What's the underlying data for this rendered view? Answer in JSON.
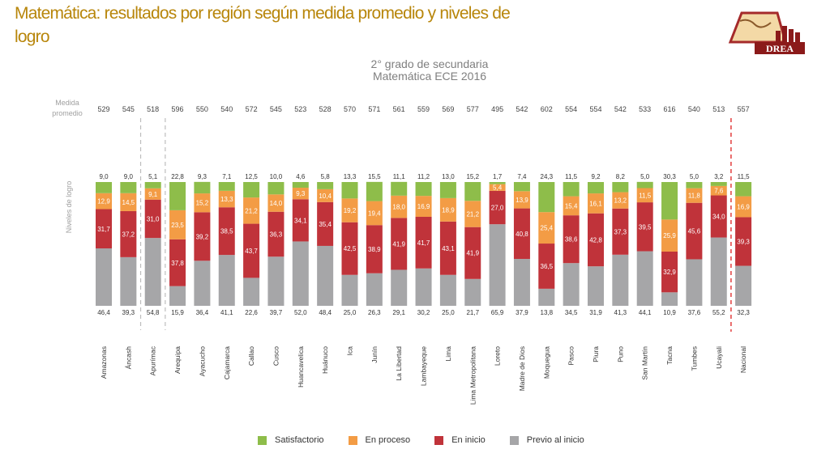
{
  "title": "Matemática: resultados por región según medida promedio  y niveles de  logro",
  "logo_text": "DREA",
  "chart_data": {
    "type": "bar",
    "stacked": true,
    "title": "2° grado de secundaria",
    "subtitle": "Matemática ECE 2016",
    "medida_label_1": "Medida",
    "medida_label_2": "promedio",
    "ylabel": "Niveles de logro",
    "ylim": [
      0,
      100
    ],
    "categories": [
      "Amazonas",
      "Áncash",
      "Apurímac",
      "Arequipa",
      "Ayacucho",
      "Cajamarca",
      "Callao",
      "Cusco",
      "Huancavelica",
      "Huánuco",
      "Ica",
      "Junín",
      "La Libertad",
      "Lambayeque",
      "Lima",
      "Lima Metropolitana",
      "Loreto",
      "Madre de Dios",
      "Moquegua",
      "Pasco",
      "Piura",
      "Puno",
      "San Martín",
      "Tacna",
      "Tumbes",
      "Ucayali",
      "Nacional"
    ],
    "medida_promedio": [
      529,
      545,
      518,
      596,
      550,
      540,
      572,
      545,
      523,
      528,
      570,
      571,
      561,
      559,
      569,
      577,
      495,
      542,
      602,
      554,
      554,
      542,
      533,
      616,
      540,
      513,
      557
    ],
    "series": [
      {
        "name": "Previo al inicio",
        "color": "#a6a6a8",
        "values": [
          46.4,
          39.3,
          54.8,
          15.9,
          36.4,
          41.1,
          22.6,
          39.7,
          52.0,
          48.4,
          25.0,
          26.3,
          29.1,
          30.2,
          25.0,
          21.7,
          65.9,
          37.9,
          13.8,
          34.5,
          31.9,
          41.3,
          44.1,
          10.9,
          37.6,
          55.2,
          32.3
        ]
      },
      {
        "name": "En inicio",
        "color": "#c0333a",
        "values": [
          31.7,
          37.2,
          31.0,
          37.8,
          39.2,
          38.5,
          43.7,
          36.3,
          34.1,
          35.4,
          42.5,
          38.9,
          41.9,
          41.7,
          43.1,
          41.9,
          27.0,
          40.8,
          36.5,
          38.6,
          42.8,
          37.3,
          39.5,
          32.9,
          45.6,
          34.0,
          39.3
        ]
      },
      {
        "name": "En proceso",
        "color": "#f39c45",
        "values": [
          12.9,
          14.5,
          9.1,
          23.5,
          15.2,
          13.3,
          21.2,
          14.0,
          9.3,
          10.4,
          19.2,
          19.4,
          18.0,
          16.9,
          18.9,
          21.2,
          5.4,
          13.9,
          25.4,
          15.4,
          16.1,
          13.2,
          11.5,
          25.9,
          11.8,
          7.6,
          16.9
        ]
      },
      {
        "name": "Satisfactorio",
        "color": "#8ebd4a",
        "values": [
          9.0,
          9.0,
          5.1,
          22.8,
          9.3,
          7.1,
          12.5,
          10.0,
          4.6,
          5.8,
          13.3,
          15.5,
          11.1,
          11.2,
          13.0,
          15.2,
          1.7,
          7.4,
          24.3,
          11.5,
          9.2,
          8.2,
          5.0,
          30.3,
          5.0,
          3.2,
          11.5
        ]
      }
    ],
    "legend": [
      "Satisfactorio",
      "En proceso",
      "En inicio",
      "Previo al inicio"
    ],
    "legend_position": "bottom"
  }
}
